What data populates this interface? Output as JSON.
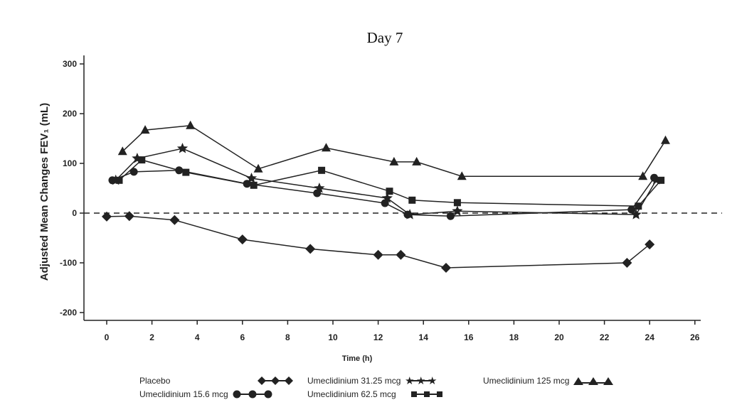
{
  "chart_data": {
    "type": "line",
    "title": "Day 7",
    "xlabel": "Time (h)",
    "ylabel": "Adjusted Mean Changes FEV₁ (mL)",
    "xlim": [
      -0.5,
      26.5
    ],
    "ylim": [
      -220,
      320
    ],
    "xticks": [
      0,
      2,
      4,
      6,
      8,
      10,
      12,
      14,
      16,
      18,
      20,
      22,
      24,
      26
    ],
    "yticks": [
      300,
      200,
      100,
      0,
      -100,
      -200
    ],
    "reference_line": {
      "y": 0,
      "style": "dashed"
    },
    "grid": false,
    "legend_position": "bottom",
    "series": [
      {
        "name": "Placebo",
        "marker": "diamond",
        "x": [
          0,
          1,
          3,
          6,
          9,
          12,
          13,
          15,
          23,
          24
        ],
        "y": [
          -7,
          -6,
          -14,
          -53,
          -72,
          -84,
          -84,
          -110,
          -100,
          -63
        ]
      },
      {
        "name": "Umeclidinium 15.6 mcg",
        "marker": "circle",
        "x": [
          0.25,
          1.2,
          3.2,
          6.2,
          9.3,
          12.3,
          13.3,
          15.2,
          23.2,
          24.2
        ],
        "y": [
          66,
          83,
          86,
          59,
          40,
          20,
          -3,
          -6,
          7,
          71
        ]
      },
      {
        "name": "Umeclidinium 31.25 mcg",
        "marker": "star",
        "x": [
          0.4,
          1.35,
          3.35,
          6.4,
          9.4,
          12.4,
          13.4,
          15.5,
          23.4,
          24.3
        ],
        "y": [
          66,
          110,
          130,
          70,
          50,
          30,
          -3,
          4,
          -3,
          67
        ]
      },
      {
        "name": "Umeclidinium 62.5 mcg",
        "marker": "square",
        "x": [
          0.55,
          1.55,
          3.5,
          6.5,
          9.5,
          12.5,
          13.5,
          15.5,
          23.5,
          24.5
        ],
        "y": [
          66,
          107,
          82,
          56,
          86,
          44,
          26,
          21,
          14,
          66
        ]
      },
      {
        "name": "Umeclidinium 125 mcg",
        "marker": "triangle",
        "x": [
          0.7,
          1.7,
          3.7,
          6.7,
          9.7,
          12.7,
          13.7,
          15.7,
          23.7,
          24.7
        ],
        "y": [
          124,
          167,
          176,
          89,
          131,
          103,
          103,
          74,
          74,
          146
        ]
      }
    ]
  },
  "colors": {
    "ink": "#222222"
  }
}
